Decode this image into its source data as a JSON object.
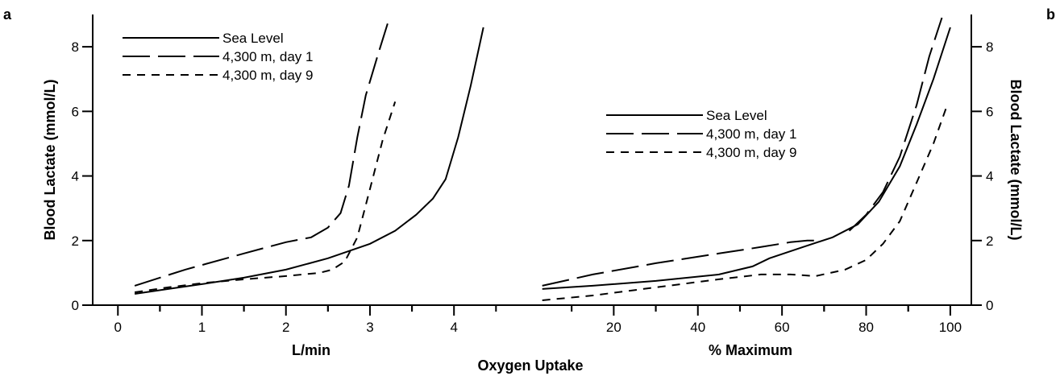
{
  "figure": {
    "panel_a_letter": "a",
    "panel_b_letter": "b",
    "shared_xlabel": "Oxygen Uptake"
  },
  "chart_data": [
    {
      "type": "line",
      "panel": "a",
      "xlabel": "L/min",
      "ylabel": "Blood Lactate (mmol/L)",
      "xlim": [
        -0.3,
        4.9
      ],
      "ylim": [
        0,
        9
      ],
      "xticks": [
        0,
        1,
        2,
        3,
        4
      ],
      "yticks": [
        0,
        2,
        4,
        6,
        8
      ],
      "legend_position": "top-left",
      "series": [
        {
          "name": "Sea Level",
          "dash": "solid",
          "x": [
            0.2,
            0.6,
            1.0,
            1.5,
            2.0,
            2.5,
            3.0,
            3.3,
            3.55,
            3.75,
            3.9,
            4.05,
            4.2,
            4.35
          ],
          "y": [
            0.35,
            0.5,
            0.65,
            0.85,
            1.1,
            1.45,
            1.9,
            2.3,
            2.8,
            3.3,
            3.9,
            5.2,
            6.8,
            8.6
          ]
        },
        {
          "name": "4,300 m, day 1",
          "dash": "long",
          "x": [
            0.2,
            0.8,
            1.5,
            2.0,
            2.3,
            2.5,
            2.65,
            2.75,
            2.85,
            2.95,
            3.1,
            3.22
          ],
          "y": [
            0.6,
            1.1,
            1.6,
            1.95,
            2.1,
            2.4,
            2.85,
            3.7,
            5.2,
            6.5,
            7.8,
            8.8
          ]
        },
        {
          "name": "4,300 m, day 9",
          "dash": "short",
          "x": [
            0.2,
            0.6,
            1.0,
            1.5,
            2.0,
            2.4,
            2.55,
            2.7,
            2.85,
            3.0,
            3.15,
            3.3
          ],
          "y": [
            0.4,
            0.55,
            0.68,
            0.8,
            0.9,
            1.0,
            1.1,
            1.35,
            2.1,
            3.6,
            5.1,
            6.3
          ]
        }
      ]
    },
    {
      "type": "line",
      "panel": "b",
      "xlabel": "% Maximum",
      "ylabel": "Blood Lactate (mmol/L)",
      "xlim": [
        0,
        105
      ],
      "ylim": [
        0,
        9
      ],
      "xticks": [
        20,
        40,
        60,
        80,
        100
      ],
      "yticks": [
        0,
        2,
        4,
        6,
        8
      ],
      "legend_position": "center-left",
      "series": [
        {
          "name": "Sea Level",
          "dash": "solid",
          "x": [
            3,
            15,
            30,
            45,
            53,
            57,
            65,
            72,
            78,
            83,
            88,
            92,
            96,
            100
          ],
          "y": [
            0.5,
            0.6,
            0.75,
            0.95,
            1.2,
            1.45,
            1.8,
            2.1,
            2.5,
            3.2,
            4.3,
            5.6,
            7.0,
            8.6
          ]
        },
        {
          "name": "4,300 m, day 1",
          "dash": "long",
          "x": [
            3,
            15,
            30,
            45,
            55,
            62,
            66,
            69
          ],
          "y": [
            0.6,
            0.95,
            1.3,
            1.6,
            1.8,
            1.95,
            2.0,
            2.0
          ]
        },
        {
          "name": "4,300 m, day 1",
          "dash": "long",
          "x": [
            76,
            80,
            84,
            88,
            92,
            95,
            98
          ],
          "y": [
            2.3,
            2.8,
            3.5,
            4.6,
            6.2,
            7.7,
            8.9
          ]
        },
        {
          "name": "4,300 m, day 9",
          "dash": "short",
          "x": [
            3,
            15,
            30,
            45,
            55,
            62,
            68,
            75,
            80,
            84,
            88,
            92,
            96,
            99
          ],
          "y": [
            0.15,
            0.3,
            0.55,
            0.8,
            0.95,
            0.95,
            0.9,
            1.1,
            1.4,
            1.9,
            2.6,
            3.8,
            5.0,
            6.1
          ]
        }
      ]
    }
  ]
}
